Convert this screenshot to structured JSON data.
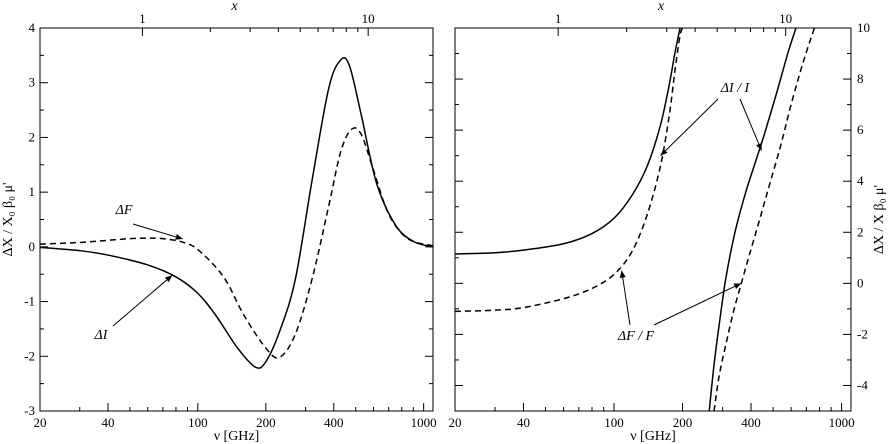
{
  "chart_data": [
    {
      "type": "line",
      "panel": "left",
      "xscale": "log",
      "xlim": [
        20,
        1100
      ],
      "ylim": [
        -3,
        4
      ],
      "xlabel": "ν [GHz]",
      "ylabel": "ΔX / X₀ β₀ μ'",
      "top_xlabel": "x",
      "x_ticks": [
        20,
        40,
        100,
        200,
        400,
        1000
      ],
      "x_ticklabels": [
        "20",
        "40",
        "100",
        "200",
        "400",
        "1000"
      ],
      "top_x_ticks": [
        56.8,
        568
      ],
      "top_x_ticklabels": [
        "1",
        "10"
      ],
      "y_ticks": [
        -3,
        -2,
        -1,
        0,
        1,
        2,
        3,
        4
      ],
      "y_ticklabels": [
        "-3",
        "-2",
        "-1",
        "0",
        "1",
        "2",
        "3",
        "4"
      ],
      "series": [
        {
          "name": "ΔI",
          "style": "solid",
          "x": [
            20,
            30,
            40,
            60,
            80,
            100,
            120,
            150,
            180,
            200,
            230,
            270,
            320,
            380,
            430,
            470,
            530,
            620,
            750,
            900,
            1100
          ],
          "y": [
            -0.01,
            -0.07,
            -0.15,
            -0.33,
            -0.55,
            -0.85,
            -1.25,
            -1.85,
            -2.2,
            -2.1,
            -1.55,
            -0.6,
            1.2,
            2.9,
            3.42,
            3.3,
            2.4,
            1.15,
            0.4,
            0.1,
            0.0
          ]
        },
        {
          "name": "ΔF",
          "style": "dashed",
          "x": [
            20,
            30,
            40,
            50,
            60,
            70,
            85,
            100,
            130,
            160,
            200,
            230,
            270,
            320,
            380,
            430,
            480,
            530,
            600,
            700,
            850,
            1100
          ],
          "y": [
            0.05,
            0.08,
            0.12,
            0.15,
            0.16,
            0.15,
            0.09,
            -0.05,
            -0.55,
            -1.25,
            -1.85,
            -2.02,
            -1.6,
            -0.6,
            0.75,
            1.75,
            2.15,
            2.05,
            1.4,
            0.6,
            0.15,
            0.02
          ]
        }
      ],
      "annotations": [
        {
          "text": "ΔF",
          "target_x": 84,
          "target_y": 0.09
        },
        {
          "text": "ΔI",
          "target_x": 77,
          "target_y": -0.52
        }
      ]
    },
    {
      "type": "line",
      "panel": "right",
      "xscale": "log",
      "xlim": [
        20,
        1100
      ],
      "ylim": [
        -5,
        10
      ],
      "xlabel": "ν [GHz]",
      "ylabel": "ΔX / X β₀ μ'",
      "top_xlabel": "x",
      "x_ticks": [
        20,
        40,
        100,
        200,
        400,
        1000
      ],
      "x_ticklabels": [
        "20",
        "40",
        "100",
        "200",
        "400",
        "1000"
      ],
      "top_x_ticks": [
        56.8,
        568
      ],
      "top_x_ticklabels": [
        "1",
        "10"
      ],
      "y_ticks": [
        -4,
        -2,
        0,
        2,
        4,
        6,
        8,
        10
      ],
      "y_ticklabels": [
        "-4",
        "-2",
        "0",
        "2",
        "4",
        "6",
        "8",
        "10"
      ],
      "series": [
        {
          "name": "ΔI / I",
          "style": "solid",
          "segments": [
            {
              "x": [
                20,
                30,
                40,
                60,
                80,
                100,
                120,
                140,
                160,
                175,
                185,
                195
              ],
              "y": [
                1.15,
                1.2,
                1.3,
                1.55,
                1.95,
                2.55,
                3.45,
                4.6,
                6.2,
                7.8,
                9.0,
                10.0
              ]
            },
            {
              "x": [
                262,
                275,
                290,
                310,
                340,
                380,
                420,
                460,
                520,
                580,
                630
              ],
              "y": [
                -5.0,
                -3.2,
                -1.6,
                0.2,
                2.0,
                3.6,
                4.8,
                5.9,
                7.5,
                9.0,
                10.0
              ]
            }
          ]
        },
        {
          "name": "ΔF / F",
          "style": "dashed",
          "segments": [
            {
              "x": [
                20,
                30,
                40,
                60,
                80,
                100,
                120,
                140,
                160,
                175,
                185,
                195,
                200
              ],
              "y": [
                -1.1,
                -1.05,
                -0.95,
                -0.6,
                -0.2,
                0.35,
                1.25,
                2.7,
                4.6,
                6.6,
                8.3,
                9.7,
                10.0
              ]
            },
            {
              "x": [
                275,
                290,
                310,
                335,
                360,
                390,
                430,
                480,
                540,
                600,
                680,
                760
              ],
              "y": [
                -5.0,
                -3.6,
                -2.4,
                -1.1,
                -0.1,
                1.0,
                2.3,
                3.8,
                5.4,
                7.0,
                8.7,
                10.0
              ]
            }
          ]
        }
      ],
      "annotations": [
        {
          "text": "ΔI / I",
          "targets": [
            {
              "x": 160,
              "y": 5.0
            },
            {
              "x": 445,
              "y": 5.2
            }
          ]
        },
        {
          "text": "ΔF / F",
          "targets": [
            {
              "x": 108,
              "y": 0.5
            },
            {
              "x": 362,
              "y": 0.0
            }
          ]
        }
      ]
    }
  ]
}
